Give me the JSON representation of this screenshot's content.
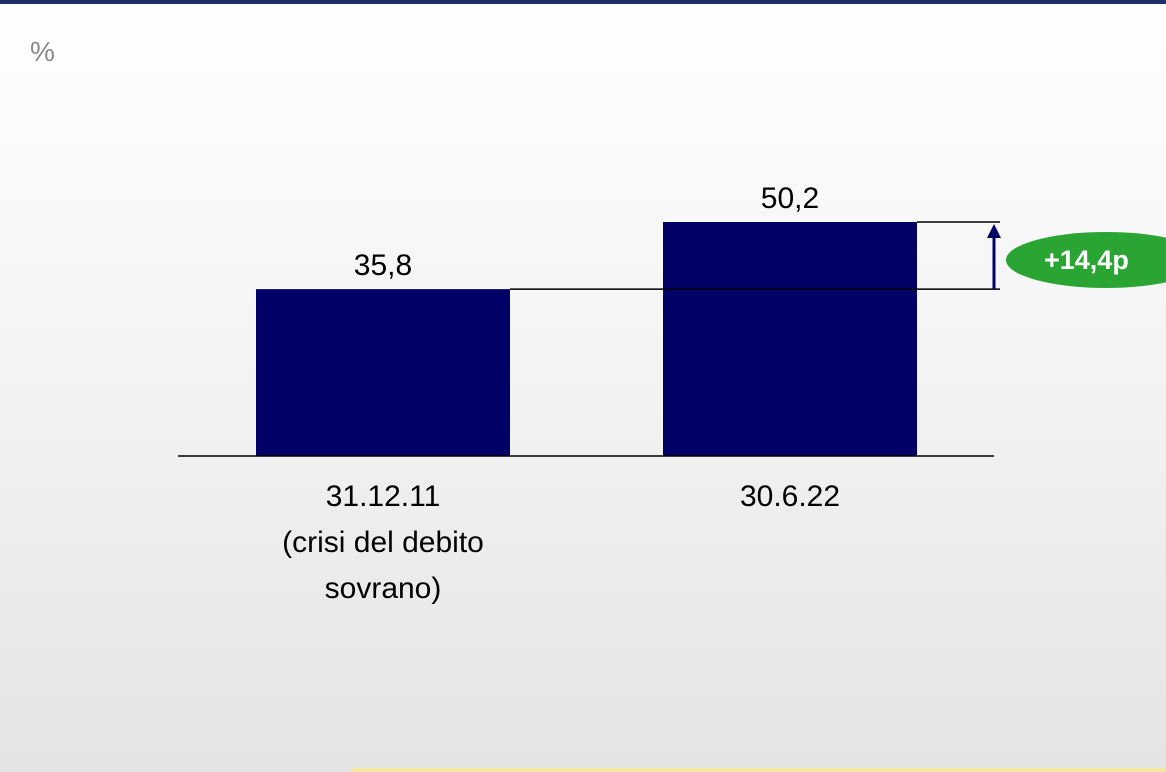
{
  "unit_label": "%",
  "change_badge": "+14,4p",
  "colors": {
    "bar": "#000066",
    "badge": "#2aa533",
    "arrow": "#000066"
  },
  "chart_data": {
    "type": "bar",
    "categories": [
      [
        "31.12.11",
        "(crisi del debito",
        "sovrano)"
      ],
      [
        "30.6.22"
      ]
    ],
    "values": [
      35.8,
      50.2
    ],
    "value_labels": [
      "35,8",
      "50,2"
    ],
    "title": "",
    "xlabel": "",
    "ylabel": "",
    "ylim": [
      0,
      50.2
    ],
    "grid": false,
    "legend": "none"
  }
}
